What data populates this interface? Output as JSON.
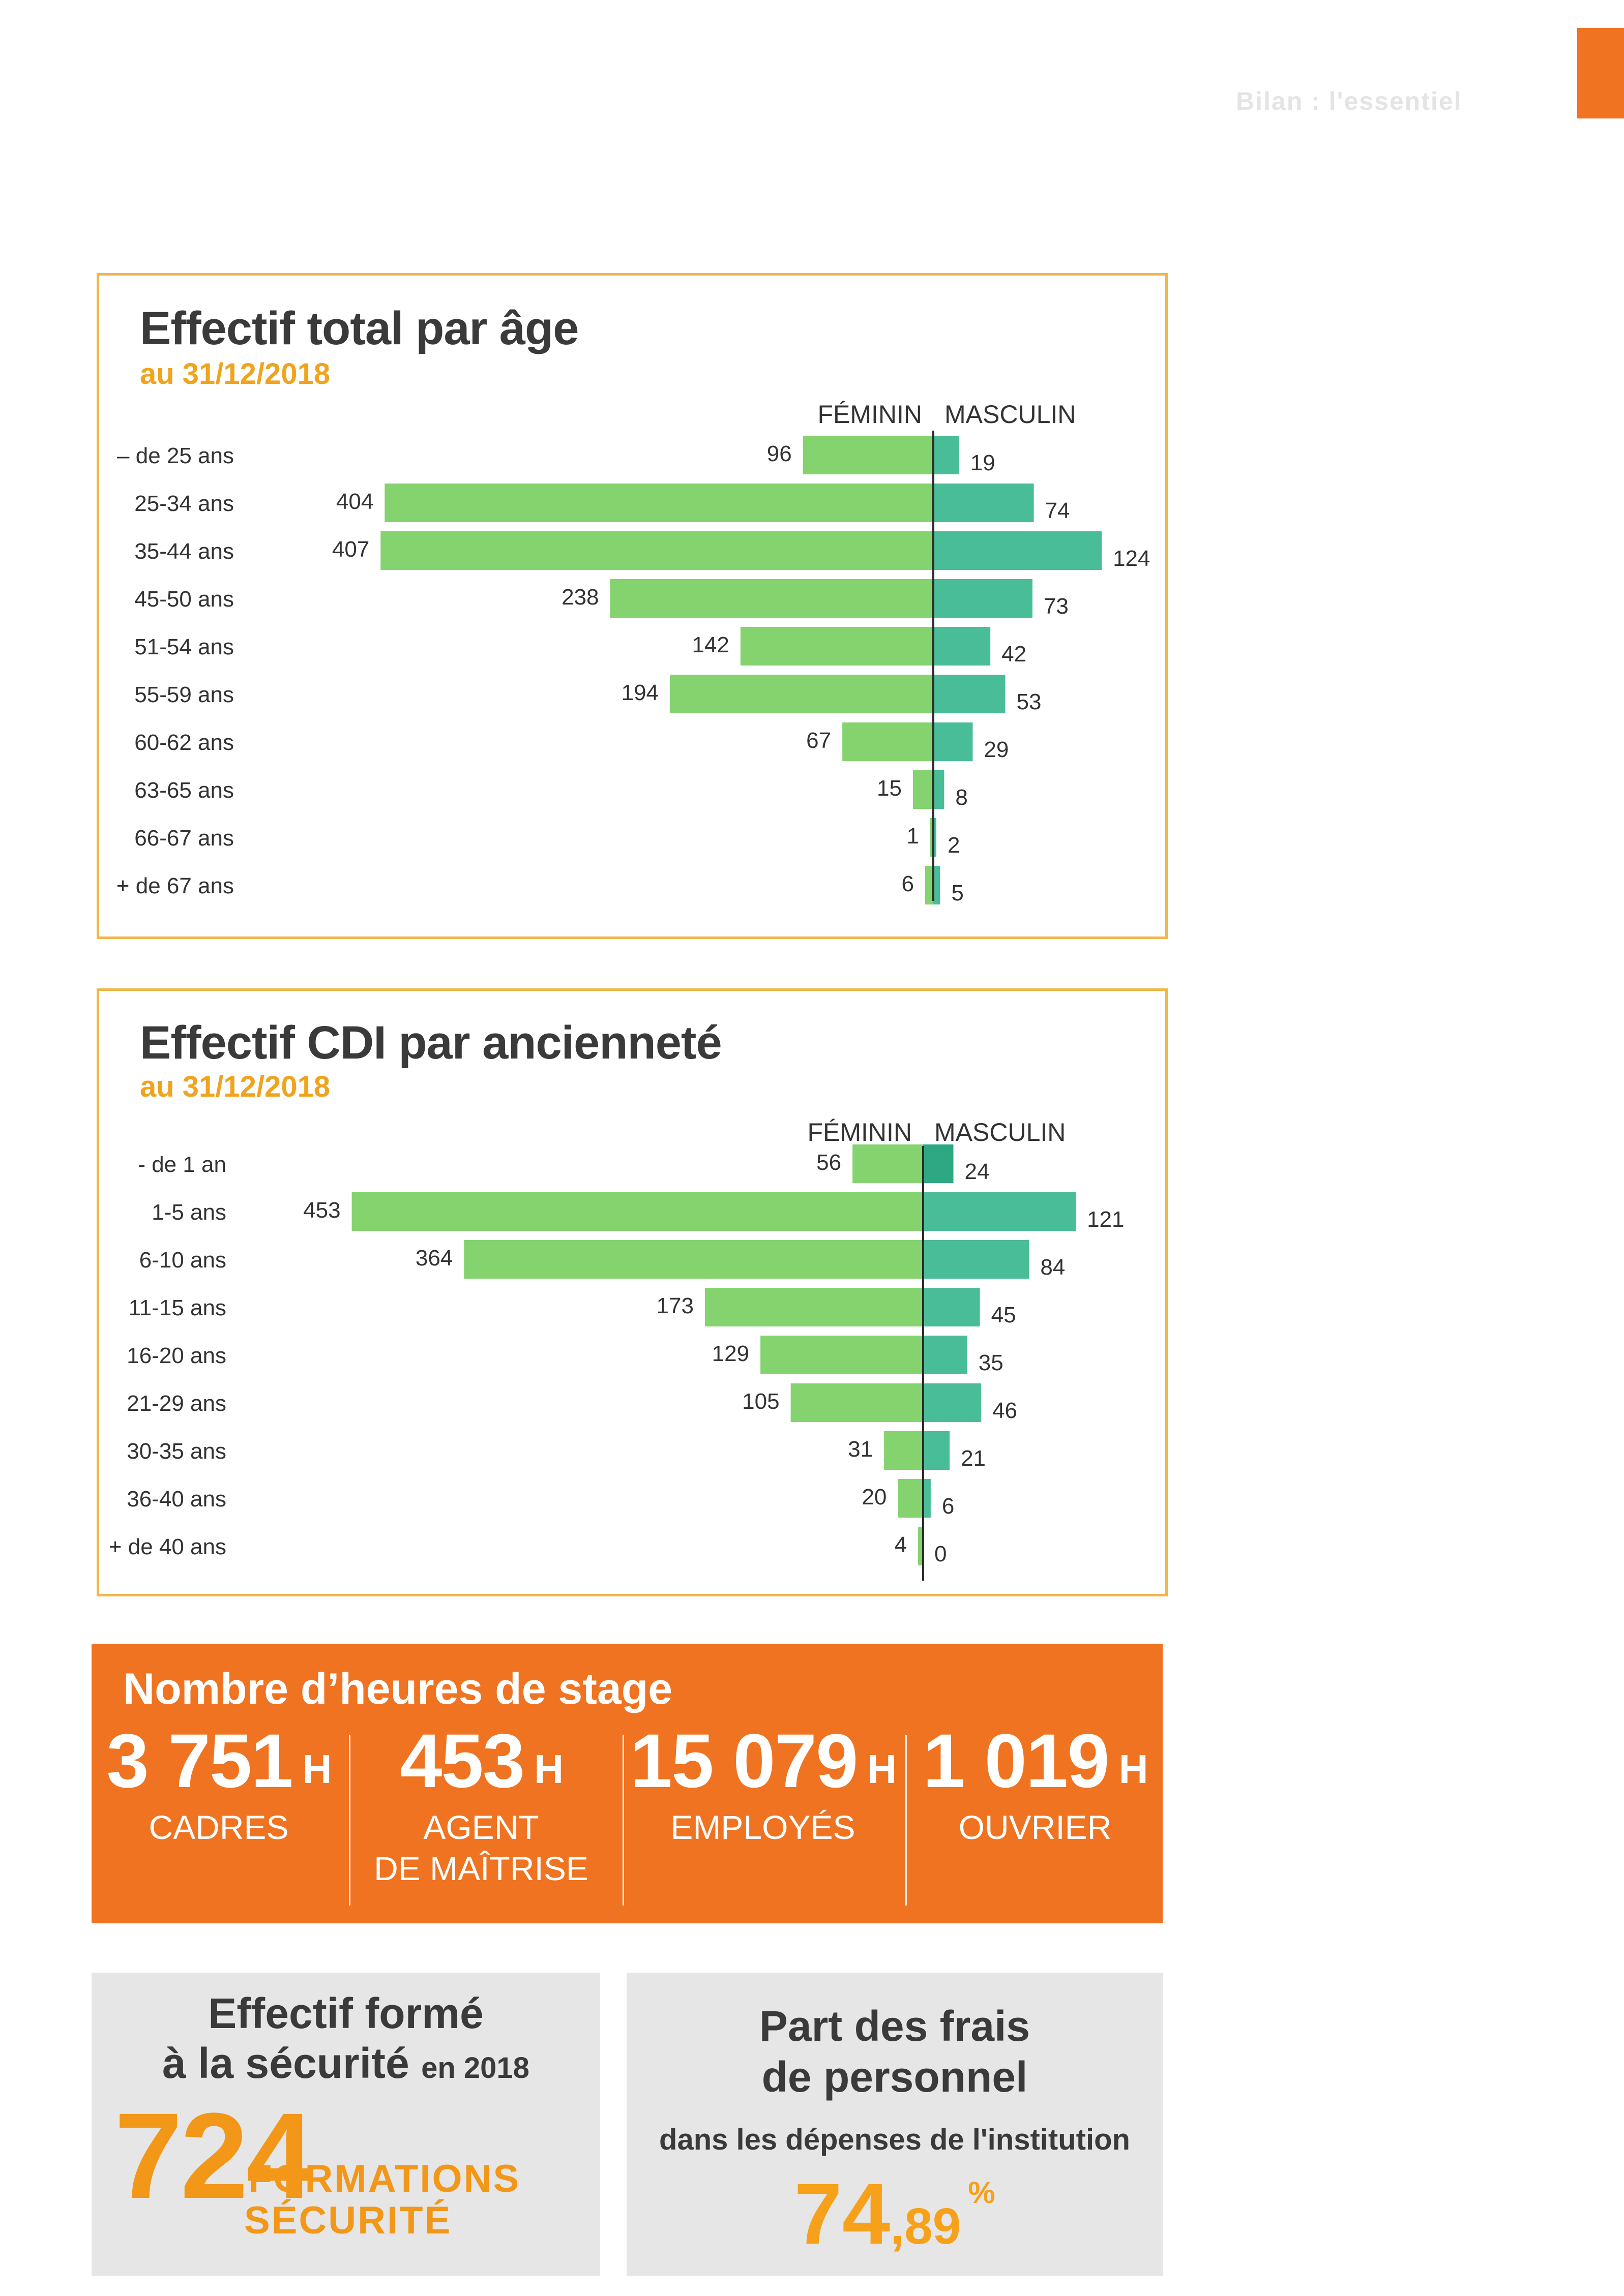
{
  "header": {
    "ghost_text": "Bilan : l'essentiel"
  },
  "colors": {
    "feminine_bar": "#84d36f",
    "masculine_bar": "#49bd98",
    "masculine_bar_dark": "#2da882",
    "frame": "#efb649",
    "orange": "#ef7321",
    "accent": "#f29718"
  },
  "chart_data": [
    {
      "type": "bar",
      "orientation": "horizontal-diverging",
      "title": "Effectif total par âge",
      "subtitle": "au 31/12/2018",
      "header_left": "FÉMININ",
      "header_right": "MASCULIN",
      "categories": [
        "– de 25 ans",
        "25-34 ans",
        "35-44 ans",
        "45-50 ans",
        "51-54 ans",
        "55-59 ans",
        "60-62 ans",
        "63-65 ans",
        "66-67 ans",
        "+ de 67 ans"
      ],
      "series": [
        {
          "name": "FÉMININ",
          "values": [
            96,
            404,
            407,
            238,
            142,
            194,
            67,
            15,
            1,
            6
          ]
        },
        {
          "name": "MASCULIN",
          "values": [
            19,
            74,
            124,
            73,
            42,
            53,
            29,
            8,
            2,
            5
          ]
        }
      ]
    },
    {
      "type": "bar",
      "orientation": "horizontal-diverging",
      "title": "Effectif CDI par ancienneté",
      "subtitle": "au 31/12/2018",
      "header_left": "FÉMININ",
      "header_right": "MASCULIN",
      "categories": [
        "- de 1 an",
        "1-5 ans",
        "6-10 ans",
        "11-15 ans",
        "16-20 ans",
        "21-29 ans",
        "30-35 ans",
        "36-40 ans",
        "+ de 40 ans"
      ],
      "series": [
        {
          "name": "FÉMININ",
          "values": [
            56,
            453,
            364,
            173,
            129,
            105,
            31,
            20,
            4
          ]
        },
        {
          "name": "MASCULIN",
          "values": [
            24,
            121,
            84,
            45,
            35,
            46,
            21,
            6,
            0
          ]
        }
      ]
    }
  ],
  "training_hours": {
    "title": "Nombre d’heures de stage",
    "unit": "H",
    "items": [
      {
        "value": "3 751",
        "label1": "CADRES",
        "label2": ""
      },
      {
        "value": "453",
        "label1": "AGENT",
        "label2": "DE MAÎTRISE"
      },
      {
        "value": "15 079",
        "label1": "EMPLOYÉS",
        "label2": ""
      },
      {
        "value": "1 019",
        "label1": "OUVRIER",
        "label2": ""
      }
    ]
  },
  "safety_training": {
    "title_line1": "Effectif formé",
    "title_line2": "à la sécurité",
    "title_suffix": "en 2018",
    "value": "724",
    "label_line1": "FORMATIONS",
    "label_line2": "SÉCURITÉ"
  },
  "staff_costs": {
    "title_line1": "Part des frais",
    "title_line2": "de personnel",
    "description": "dans les dépenses de l'institution",
    "value_int": "74",
    "value_dec": ",89",
    "unit": "%"
  }
}
